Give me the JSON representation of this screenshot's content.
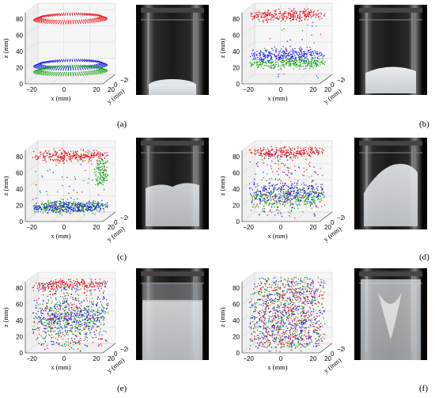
{
  "figure": {
    "panels": [
      {
        "id": "a",
        "caption": "(a)",
        "state": "settled-layers",
        "colors": [
          "#e8141c",
          "#1c1ce8",
          "#14a014"
        ]
      },
      {
        "id": "b",
        "caption": "(b)",
        "state": "early-dispersion",
        "colors": [
          "#e8141c",
          "#1c1ce8",
          "#14a014"
        ]
      },
      {
        "id": "c",
        "caption": "(c)",
        "state": "mixing-bottom",
        "colors": [
          "#e8141c",
          "#1c1ce8",
          "#14a014"
        ]
      },
      {
        "id": "d",
        "caption": "(d)",
        "state": "rising-mix",
        "colors": [
          "#e8141c",
          "#1c1ce8",
          "#14a014"
        ]
      },
      {
        "id": "e",
        "caption": "(e)",
        "state": "filled-mix",
        "colors": [
          "#e8141c",
          "#1c1ce8",
          "#14a014"
        ]
      },
      {
        "id": "f",
        "caption": "(f)",
        "state": "fully-mixed",
        "colors": [
          "#e8141c",
          "#1c1ce8",
          "#14a014"
        ]
      }
    ],
    "axes": {
      "zlabel": "z (mm)",
      "xlabel": "x (mm)",
      "ylabel": "y (mm)",
      "zticks": [
        "0",
        "20",
        "40",
        "60",
        "80"
      ],
      "xticks": [
        "−20",
        "0",
        "20"
      ],
      "yticks": [
        "20",
        "0",
        "−20"
      ]
    }
  }
}
